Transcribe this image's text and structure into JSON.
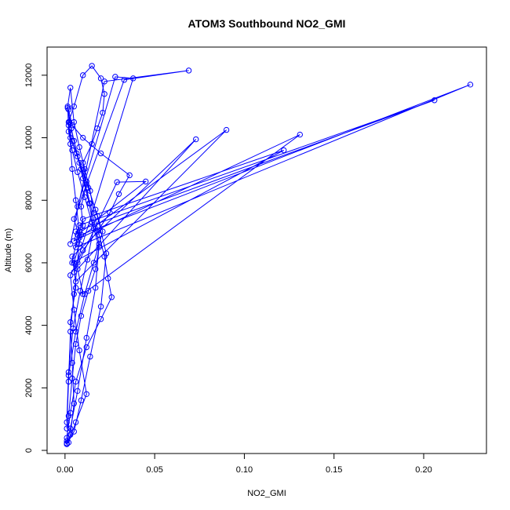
{
  "chart_data": {
    "type": "line",
    "title": "ATOM3 Southbound NO2_GMI",
    "xlabel": "NO2_GMI",
    "ylabel": "Altitude (m)",
    "xlim": [
      -0.01,
      0.235
    ],
    "ylim": [
      -100,
      12900
    ],
    "xticks": [
      0.0,
      0.05,
      0.1,
      0.15,
      0.2
    ],
    "xtick_labels": [
      "0.00",
      "0.05",
      "0.10",
      "0.15",
      "0.20"
    ],
    "yticks": [
      0,
      2000,
      4000,
      6000,
      8000,
      10000,
      12000
    ],
    "ytick_labels": [
      "0",
      "2000",
      "4000",
      "6000",
      "8000",
      "10000",
      "12000"
    ],
    "series_color": "#0000ff",
    "marker": "open-circle",
    "grid": false,
    "series": [
      {
        "x": [
          0.001,
          0.003,
          0.005,
          0.004,
          0.003,
          0.006,
          0.005,
          0.008,
          0.01,
          0.009,
          0.012,
          0.01,
          0.015,
          0.018,
          0.021,
          0.022,
          0.02,
          0.015,
          0.01,
          0.005,
          0.002,
          0.003,
          0.004,
          0.006,
          0.008,
          0.007,
          0.005,
          0.003,
          0.002,
          0.001
        ],
        "y": [
          200,
          500,
          1500,
          2800,
          4100,
          5200,
          6000,
          6600,
          7200,
          7800,
          8500,
          9200,
          9800,
          10300,
          10800,
          11400,
          11900,
          12300,
          12000,
          11000,
          10500,
          9800,
          9000,
          8000,
          7000,
          6000,
          5000,
          3800,
          2200,
          700
        ]
      },
      {
        "x": [
          0.002,
          0.006,
          0.012,
          0.008,
          0.005,
          0.003,
          0.01,
          0.018,
          0.025,
          0.03,
          0.036,
          0.02,
          0.01,
          0.004,
          0.002
        ],
        "y": [
          250,
          900,
          1800,
          3200,
          4500,
          5600,
          6400,
          7000,
          7600,
          8200,
          8800,
          9500,
          10000,
          10400,
          10900
        ]
      },
      {
        "x": [
          0.003,
          0.022,
          0.069,
          0.033,
          0.005,
          0.008,
          0.09,
          0.006,
          0.004,
          0.073,
          0.007,
          0.01,
          0.131,
          0.005,
          0.008,
          0.206,
          0.006,
          0.009,
          0.226,
          0.006,
          0.01,
          0.122,
          0.004,
          0.007,
          0.045,
          0.029,
          0.005,
          0.038,
          0.028,
          0.007
        ],
        "y": [
          6600,
          11800,
          12150,
          11850,
          7400,
          6800,
          10250,
          5400,
          6200,
          9950,
          5800,
          5000,
          10100,
          6700,
          7200,
          11200,
          7000,
          6900,
          11700,
          6500,
          7400,
          9600,
          6000,
          6900,
          8600,
          8580,
          5700,
          11900,
          11950,
          7800
        ]
      },
      {
        "x": [
          0.001,
          0.002,
          0.004,
          0.006,
          0.009,
          0.013,
          0.017,
          0.019,
          0.015,
          0.011,
          0.007,
          0.004,
          0.002,
          0.0015,
          0.003,
          0.005,
          0.008,
          0.011,
          0.014,
          0.016,
          0.019,
          0.022,
          0.024,
          0.026,
          0.02,
          0.012,
          0.006,
          0.003,
          0.001
        ],
        "y": [
          300,
          1100,
          2300,
          3400,
          4300,
          5100,
          5800,
          6500,
          7300,
          8100,
          8900,
          9600,
          10200,
          11000,
          11600,
          10500,
          9700,
          9000,
          8300,
          7600,
          6900,
          6200,
          5500,
          4900,
          4200,
          3300,
          2200,
          1200,
          400
        ]
      },
      {
        "x": [
          0.001,
          0.005,
          0.009,
          0.014,
          0.02,
          0.023,
          0.018,
          0.012,
          0.007,
          0.003,
          0.002,
          0.004,
          0.008,
          0.013,
          0.017,
          0.021,
          0.016,
          0.011,
          0.006,
          0.002
        ],
        "y": [
          200,
          600,
          1600,
          3000,
          4600,
          6300,
          7500,
          8600,
          9400,
          10000,
          10400,
          9900,
          9200,
          8400,
          7700,
          7000,
          6000,
          5000,
          3800,
          2400
        ]
      },
      {
        "x": [
          0.001,
          0.003,
          0.007,
          0.012,
          0.017,
          0.019,
          0.014,
          0.009,
          0.005,
          0.0025,
          0.0015,
          0.0035,
          0.0065,
          0.01,
          0.0135,
          0.016,
          0.0125,
          0.0085,
          0.0045,
          0.002,
          0.001
        ],
        "y": [
          230,
          700,
          1900,
          3600,
          5200,
          6600,
          7900,
          9000,
          9900,
          10500,
          10950,
          10300,
          9500,
          8700,
          7900,
          7100,
          6100,
          5100,
          3900,
          2500,
          900
        ]
      }
    ]
  }
}
